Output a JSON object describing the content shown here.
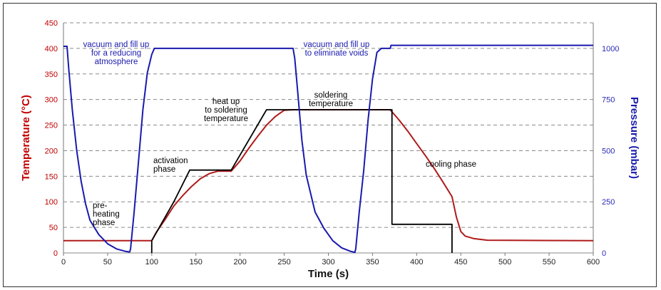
{
  "chart_data": {
    "type": "line",
    "x_axis": {
      "label": "Time (s)",
      "range": [
        0,
        600
      ],
      "ticks": [
        0,
        50,
        100,
        150,
        200,
        250,
        300,
        350,
        400,
        450,
        500,
        550,
        600
      ]
    },
    "y_left": {
      "label": "Temperature (°C)",
      "range": [
        0,
        450
      ],
      "ticks": [
        0,
        50,
        100,
        150,
        200,
        250,
        300,
        350,
        400,
        450
      ],
      "color": "#c00000"
    },
    "y_right": {
      "label": "Pressure (mbar)",
      "range": [
        0,
        1125
      ],
      "ticks": [
        0,
        250,
        500,
        750,
        1000
      ],
      "color": "#1a1aad"
    },
    "grid": "horizontal dashed",
    "series": [
      {
        "axis": "left",
        "color": "#b01a1a",
        "points": [
          [
            0,
            24
          ],
          [
            100,
            24
          ],
          [
            105,
            40
          ],
          [
            115,
            65
          ],
          [
            125,
            92
          ],
          [
            135,
            112
          ],
          [
            145,
            130
          ],
          [
            155,
            145
          ],
          [
            165,
            155
          ],
          [
            175,
            160
          ],
          [
            190,
            160
          ],
          [
            200,
            180
          ],
          [
            210,
            205
          ],
          [
            220,
            228
          ],
          [
            230,
            250
          ],
          [
            240,
            267
          ],
          [
            250,
            279
          ],
          [
            260,
            280
          ],
          [
            370,
            280
          ],
          [
            380,
            260
          ],
          [
            390,
            238
          ],
          [
            400,
            214
          ],
          [
            410,
            190
          ],
          [
            420,
            165
          ],
          [
            430,
            138
          ],
          [
            440,
            110
          ],
          [
            445,
            70
          ],
          [
            450,
            42
          ],
          [
            455,
            33
          ],
          [
            465,
            28
          ],
          [
            480,
            25
          ],
          [
            600,
            24
          ]
        ]
      },
      {
        "axis": "left",
        "color": "#000000",
        "points": [
          [
            100,
            0
          ],
          [
            100,
            24
          ],
          [
            125,
            100
          ],
          [
            143,
            162
          ],
          [
            190,
            162
          ],
          [
            230,
            280
          ],
          [
            370,
            280
          ],
          [
            372,
            280
          ],
          [
            372,
            56
          ],
          [
            440,
            56
          ],
          [
            440,
            0
          ]
        ]
      },
      {
        "axis": "right",
        "color": "#1a1aad",
        "points": [
          [
            0,
            1010
          ],
          [
            4,
            1010
          ],
          [
            6,
            900
          ],
          [
            10,
            700
          ],
          [
            15,
            500
          ],
          [
            20,
            350
          ],
          [
            25,
            240
          ],
          [
            30,
            160
          ],
          [
            40,
            90
          ],
          [
            50,
            45
          ],
          [
            60,
            20
          ],
          [
            70,
            8
          ],
          [
            75,
            5
          ],
          [
            76,
            20
          ],
          [
            80,
            200
          ],
          [
            85,
            450
          ],
          [
            90,
            700
          ],
          [
            95,
            880
          ],
          [
            100,
            970
          ],
          [
            103,
            1000
          ],
          [
            260,
            1000
          ],
          [
            262,
            950
          ],
          [
            265,
            800
          ],
          [
            270,
            550
          ],
          [
            275,
            380
          ],
          [
            285,
            200
          ],
          [
            295,
            120
          ],
          [
            305,
            60
          ],
          [
            315,
            25
          ],
          [
            325,
            8
          ],
          [
            330,
            3
          ],
          [
            331,
            20
          ],
          [
            335,
            200
          ],
          [
            340,
            400
          ],
          [
            345,
            650
          ],
          [
            350,
            850
          ],
          [
            355,
            980
          ],
          [
            360,
            1000
          ],
          [
            370,
            1000
          ],
          [
            371,
            1015
          ],
          [
            600,
            1015
          ]
        ]
      }
    ],
    "annotations": [
      {
        "lines": [
          "vacuum and fill up",
          "for a reducing",
          "atmosphere"
        ],
        "color": "#1a1aad"
      },
      {
        "lines": [
          "vacuum and fill up",
          "to eliminate voids"
        ],
        "color": "#1a1aad"
      },
      {
        "lines": [
          "heat up",
          "to soldering",
          "temperature"
        ],
        "color": "#000000"
      },
      {
        "lines": [
          "soldering",
          "temperature"
        ],
        "color": "#000000"
      },
      {
        "lines": [
          "activation",
          "phase"
        ],
        "color": "#000000"
      },
      {
        "lines": [
          "cooling phase"
        ],
        "color": "#000000"
      },
      {
        "lines": [
          "pre-",
          "heating",
          "phase"
        ],
        "color": "#000000"
      }
    ]
  }
}
